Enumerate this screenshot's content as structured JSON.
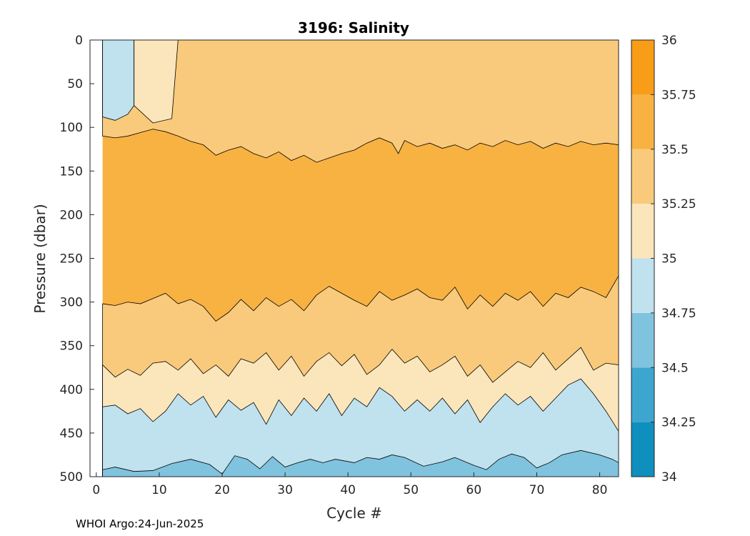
{
  "chart_data": {
    "type": "filled-contour",
    "title": "3196:  Salinity",
    "xlabel": "Cycle #",
    "ylabel": "Pressure (dbar)",
    "xlim": [
      -1,
      83
    ],
    "ylim": [
      500,
      0
    ],
    "x_ticks": [
      0,
      10,
      20,
      30,
      40,
      50,
      60,
      70,
      80
    ],
    "y_ticks": [
      0,
      50,
      100,
      150,
      200,
      250,
      300,
      350,
      400,
      450,
      500
    ],
    "data_x_range": [
      1,
      83
    ],
    "colorbar": {
      "ticks": [
        "34",
        "34.25",
        "34.5",
        "34.75",
        "35",
        "35.25",
        "35.5",
        "35.75",
        "36"
      ],
      "levels": [
        {
          "min": 34.0,
          "max": 34.25,
          "color": "#0f8fbe"
        },
        {
          "min": 34.25,
          "max": 34.5,
          "color": "#3da6cf"
        },
        {
          "min": 34.5,
          "max": 34.75,
          "color": "#80c3de"
        },
        {
          "min": 34.75,
          "max": 35.0,
          "color": "#c0e1ee"
        },
        {
          "min": 35.0,
          "max": 35.25,
          "color": "#fbe5bb"
        },
        {
          "min": 35.25,
          "max": 35.5,
          "color": "#f9ca7b"
        },
        {
          "min": 35.5,
          "max": 35.75,
          "color": "#f8b242"
        },
        {
          "min": 35.75,
          "max": 36.0,
          "color": "#f89d17"
        }
      ]
    },
    "boundaries": [
      {
        "name": "34.75",
        "fill_below": "#80c3de",
        "points": [
          [
            1,
            492
          ],
          [
            3,
            489
          ],
          [
            6,
            494
          ],
          [
            9,
            493
          ],
          [
            12,
            485
          ],
          [
            15,
            480
          ],
          [
            18,
            486
          ],
          [
            20,
            497
          ],
          [
            22,
            476
          ],
          [
            24,
            480
          ],
          [
            26,
            491
          ],
          [
            28,
            477
          ],
          [
            30,
            489
          ],
          [
            32,
            484
          ],
          [
            34,
            480
          ],
          [
            36,
            484
          ],
          [
            38,
            480
          ],
          [
            41,
            484
          ],
          [
            43,
            478
          ],
          [
            45,
            480
          ],
          [
            47,
            475
          ],
          [
            49,
            478
          ],
          [
            52,
            488
          ],
          [
            55,
            483
          ],
          [
            57,
            478
          ],
          [
            60,
            487
          ],
          [
            62,
            492
          ],
          [
            64,
            480
          ],
          [
            66,
            474
          ],
          [
            68,
            478
          ],
          [
            70,
            490
          ],
          [
            72,
            484
          ],
          [
            74,
            475
          ],
          [
            77,
            470
          ],
          [
            80,
            475
          ],
          [
            82,
            480
          ],
          [
            83,
            484
          ]
        ]
      },
      {
        "name": "35",
        "fill_below": "#c0e1ee",
        "points": [
          [
            1,
            420
          ],
          [
            3,
            418
          ],
          [
            5,
            428
          ],
          [
            7,
            422
          ],
          [
            9,
            437
          ],
          [
            11,
            425
          ],
          [
            13,
            405
          ],
          [
            15,
            418
          ],
          [
            17,
            408
          ],
          [
            19,
            432
          ],
          [
            21,
            412
          ],
          [
            23,
            424
          ],
          [
            25,
            415
          ],
          [
            27,
            440
          ],
          [
            29,
            412
          ],
          [
            31,
            430
          ],
          [
            33,
            410
          ],
          [
            35,
            425
          ],
          [
            37,
            405
          ],
          [
            39,
            430
          ],
          [
            41,
            410
          ],
          [
            43,
            420
          ],
          [
            45,
            398
          ],
          [
            47,
            408
          ],
          [
            49,
            425
          ],
          [
            51,
            412
          ],
          [
            53,
            425
          ],
          [
            55,
            410
          ],
          [
            57,
            428
          ],
          [
            59,
            412
          ],
          [
            61,
            438
          ],
          [
            63,
            420
          ],
          [
            65,
            405
          ],
          [
            67,
            418
          ],
          [
            69,
            408
          ],
          [
            71,
            425
          ],
          [
            73,
            410
          ],
          [
            75,
            395
          ],
          [
            77,
            388
          ],
          [
            79,
            405
          ],
          [
            81,
            425
          ],
          [
            83,
            448
          ]
        ]
      },
      {
        "name": "35.25",
        "fill_below": "#fbe5bb",
        "points": [
          [
            1,
            372
          ],
          [
            3,
            386
          ],
          [
            5,
            377
          ],
          [
            7,
            384
          ],
          [
            9,
            370
          ],
          [
            11,
            368
          ],
          [
            13,
            378
          ],
          [
            15,
            365
          ],
          [
            17,
            382
          ],
          [
            19,
            372
          ],
          [
            21,
            385
          ],
          [
            23,
            365
          ],
          [
            25,
            370
          ],
          [
            27,
            358
          ],
          [
            29,
            378
          ],
          [
            31,
            362
          ],
          [
            33,
            385
          ],
          [
            35,
            368
          ],
          [
            37,
            358
          ],
          [
            39,
            373
          ],
          [
            41,
            360
          ],
          [
            43,
            383
          ],
          [
            45,
            372
          ],
          [
            47,
            354
          ],
          [
            49,
            370
          ],
          [
            51,
            362
          ],
          [
            53,
            380
          ],
          [
            55,
            372
          ],
          [
            57,
            362
          ],
          [
            59,
            385
          ],
          [
            61,
            372
          ],
          [
            63,
            392
          ],
          [
            65,
            380
          ],
          [
            67,
            368
          ],
          [
            69,
            375
          ],
          [
            71,
            358
          ],
          [
            73,
            378
          ],
          [
            75,
            365
          ],
          [
            77,
            352
          ],
          [
            79,
            378
          ],
          [
            81,
            370
          ],
          [
            83,
            372
          ]
        ]
      },
      {
        "name": "35.5",
        "fill_below": "#f9ca7b",
        "points": [
          [
            1,
            302
          ],
          [
            3,
            304
          ],
          [
            5,
            300
          ],
          [
            7,
            302
          ],
          [
            9,
            296
          ],
          [
            11,
            290
          ],
          [
            13,
            302
          ],
          [
            15,
            297
          ],
          [
            17,
            305
          ],
          [
            19,
            322
          ],
          [
            21,
            312
          ],
          [
            23,
            297
          ],
          [
            25,
            310
          ],
          [
            27,
            295
          ],
          [
            29,
            305
          ],
          [
            31,
            297
          ],
          [
            33,
            310
          ],
          [
            35,
            292
          ],
          [
            37,
            282
          ],
          [
            39,
            290
          ],
          [
            41,
            298
          ],
          [
            43,
            305
          ],
          [
            45,
            288
          ],
          [
            47,
            298
          ],
          [
            49,
            292
          ],
          [
            51,
            285
          ],
          [
            53,
            295
          ],
          [
            55,
            298
          ],
          [
            57,
            283
          ],
          [
            59,
            308
          ],
          [
            61,
            292
          ],
          [
            63,
            305
          ],
          [
            65,
            290
          ],
          [
            67,
            298
          ],
          [
            69,
            288
          ],
          [
            71,
            305
          ],
          [
            73,
            290
          ],
          [
            75,
            295
          ],
          [
            77,
            283
          ],
          [
            79,
            288
          ],
          [
            81,
            295
          ],
          [
            83,
            270
          ]
        ]
      },
      {
        "name": "35.5-upper",
        "fill_below": "#f8b242",
        "points": [
          [
            1,
            110
          ],
          [
            3,
            112
          ],
          [
            5,
            110
          ],
          [
            7,
            106
          ],
          [
            9,
            102
          ],
          [
            11,
            105
          ],
          [
            13,
            110
          ],
          [
            15,
            116
          ],
          [
            17,
            120
          ],
          [
            19,
            132
          ],
          [
            21,
            126
          ],
          [
            23,
            122
          ],
          [
            25,
            130
          ],
          [
            27,
            135
          ],
          [
            29,
            128
          ],
          [
            31,
            138
          ],
          [
            33,
            132
          ],
          [
            35,
            140
          ],
          [
            37,
            135
          ],
          [
            39,
            130
          ],
          [
            41,
            126
          ],
          [
            43,
            118
          ],
          [
            45,
            112
          ],
          [
            47,
            118
          ],
          [
            48,
            130
          ],
          [
            49,
            115
          ],
          [
            51,
            122
          ],
          [
            53,
            118
          ],
          [
            55,
            124
          ],
          [
            57,
            120
          ],
          [
            59,
            126
          ],
          [
            61,
            118
          ],
          [
            63,
            122
          ],
          [
            65,
            115
          ],
          [
            67,
            120
          ],
          [
            69,
            116
          ],
          [
            71,
            124
          ],
          [
            73,
            118
          ],
          [
            75,
            122
          ],
          [
            77,
            116
          ],
          [
            79,
            120
          ],
          [
            81,
            118
          ],
          [
            83,
            120
          ]
        ]
      }
    ]
  },
  "footer": "WHOI Argo:24-Jun-2025"
}
